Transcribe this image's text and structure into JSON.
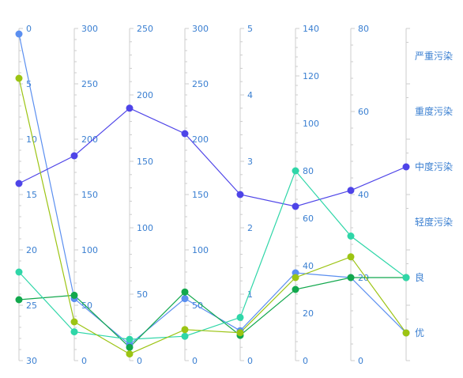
{
  "chart_data": {
    "type": "parallel",
    "title": "",
    "axes": [
      {
        "kind": "value",
        "min": 0,
        "max": 30,
        "inverse": true,
        "ticks": [
          0,
          5,
          10,
          15,
          20,
          25,
          30
        ],
        "labels": [
          "0",
          "5",
          "10",
          "15",
          "20",
          "25",
          "30"
        ]
      },
      {
        "kind": "value",
        "min": 0,
        "max": 300,
        "inverse": false,
        "ticks": [
          0,
          50,
          100,
          150,
          200,
          250,
          300
        ],
        "labels": [
          "0",
          "50",
          "100",
          "150",
          "200",
          "250",
          "300"
        ]
      },
      {
        "kind": "value",
        "min": 0,
        "max": 250,
        "inverse": false,
        "ticks": [
          0,
          50,
          100,
          150,
          200,
          250
        ],
        "labels": [
          "0",
          "50",
          "100",
          "150",
          "200",
          "250"
        ]
      },
      {
        "kind": "value",
        "min": 0,
        "max": 300,
        "inverse": false,
        "ticks": [
          0,
          50,
          100,
          150,
          200,
          250,
          300
        ],
        "labels": [
          "0",
          "50",
          "100",
          "150",
          "200",
          "250",
          "300"
        ]
      },
      {
        "kind": "value",
        "min": 0,
        "max": 5,
        "inverse": false,
        "ticks": [
          0,
          1,
          2,
          3,
          4,
          5
        ],
        "labels": [
          "0",
          "1",
          "2",
          "3",
          "4",
          "5"
        ]
      },
      {
        "kind": "value",
        "min": 0,
        "max": 140,
        "inverse": false,
        "ticks": [
          0,
          20,
          40,
          60,
          80,
          100,
          120,
          140
        ],
        "labels": [
          "0",
          "20",
          "40",
          "60",
          "80",
          "100",
          "120",
          "140"
        ]
      },
      {
        "kind": "value",
        "min": 0,
        "max": 80,
        "inverse": false,
        "ticks": [
          0,
          20,
          40,
          60,
          80
        ],
        "labels": [
          "0",
          "20",
          "40",
          "60",
          "80"
        ]
      },
      {
        "kind": "category",
        "categories": [
          "优",
          "良",
          "轻度污染",
          "中度污染",
          "重度污染",
          "严重污染"
        ]
      }
    ],
    "series": [
      {
        "color": "#5b8ff0",
        "values": [
          0.5,
          56,
          12,
          56,
          0.45,
          37,
          20,
          "优"
        ]
      },
      {
        "color": "#4e44e8",
        "values": [
          14,
          185,
          190,
          205,
          2.5,
          65,
          41,
          "中度污染"
        ]
      },
      {
        "color": "#12a84d",
        "values": [
          24.5,
          59,
          10,
          62,
          0.38,
          30,
          20,
          "良"
        ]
      },
      {
        "color": "#2fd6a8",
        "values": [
          22,
          26,
          16,
          22,
          0.65,
          80,
          30,
          "良"
        ]
      },
      {
        "color": "#9cc413",
        "values": [
          4.5,
          35,
          5,
          28,
          0.42,
          35,
          25,
          "优"
        ]
      }
    ]
  }
}
